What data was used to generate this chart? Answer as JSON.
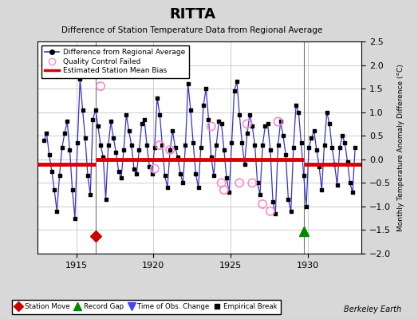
{
  "title": "RITTA",
  "subtitle": "Difference of Station Temperature Data from Regional Average",
  "ylabel": "Monthly Temperature Anomaly Difference (°C)",
  "xlim": [
    1912.5,
    1933.5
  ],
  "ylim": [
    -2.0,
    2.5
  ],
  "yticks": [
    -2.0,
    -1.5,
    -1.0,
    -0.5,
    0.0,
    0.5,
    1.0,
    1.5,
    2.0,
    2.5
  ],
  "xticks": [
    1915,
    1920,
    1925,
    1930
  ],
  "bg_color": "#d8d8d8",
  "plot_bg_color": "#ffffff",
  "line_color": "#3333cc",
  "bias_color": "#dd0000",
  "qc_color": "#ff88cc",
  "station_move_color": "#cc0000",
  "record_gap_color": "#008800",
  "time_obs_color": "#4444ff",
  "grid_color": "#bbbbbb",
  "data_x": [
    1912.917,
    1913.083,
    1913.25,
    1913.417,
    1913.583,
    1913.75,
    1913.917,
    1914.083,
    1914.25,
    1914.417,
    1914.583,
    1914.75,
    1914.917,
    1915.083,
    1915.25,
    1915.417,
    1915.583,
    1915.75,
    1915.917,
    1916.083,
    1916.25,
    1916.417,
    1916.583,
    1916.75,
    1916.917,
    1917.083,
    1917.25,
    1917.417,
    1917.583,
    1917.75,
    1917.917,
    1918.083,
    1918.25,
    1918.417,
    1918.583,
    1918.75,
    1918.917,
    1919.083,
    1919.25,
    1919.417,
    1919.583,
    1919.75,
    1919.917,
    1920.083,
    1920.25,
    1920.417,
    1920.583,
    1920.75,
    1920.917,
    1921.083,
    1921.25,
    1921.417,
    1921.583,
    1921.75,
    1921.917,
    1922.083,
    1922.25,
    1922.417,
    1922.583,
    1922.75,
    1922.917,
    1923.083,
    1923.25,
    1923.417,
    1923.583,
    1923.75,
    1923.917,
    1924.083,
    1924.25,
    1924.417,
    1924.583,
    1924.75,
    1924.917,
    1925.083,
    1925.25,
    1925.417,
    1925.583,
    1925.75,
    1925.917,
    1926.083,
    1926.25,
    1926.417,
    1926.583,
    1926.75,
    1926.917,
    1927.083,
    1927.25,
    1927.417,
    1927.583,
    1927.75,
    1927.917,
    1928.083,
    1928.25,
    1928.417,
    1928.583,
    1928.75,
    1928.917,
    1929.083,
    1929.25,
    1929.417,
    1929.583,
    1929.75,
    1929.917,
    1930.083,
    1930.25,
    1930.417,
    1930.583,
    1930.75,
    1930.917,
    1931.083,
    1931.25,
    1931.417,
    1931.583,
    1931.75,
    1931.917,
    1932.083,
    1932.25,
    1932.417,
    1932.583,
    1932.75,
    1932.917,
    1933.083
  ],
  "data_y": [
    0.4,
    0.55,
    0.1,
    -0.25,
    -0.65,
    -1.1,
    -0.35,
    0.25,
    0.55,
    0.8,
    0.2,
    -0.65,
    -1.25,
    0.35,
    1.7,
    1.05,
    0.45,
    -0.35,
    -0.75,
    0.85,
    1.05,
    0.7,
    0.3,
    0.05,
    -0.85,
    0.3,
    0.8,
    0.45,
    0.15,
    -0.25,
    -0.4,
    0.2,
    0.95,
    0.6,
    0.3,
    -0.2,
    -0.3,
    0.2,
    0.75,
    0.85,
    0.3,
    -0.15,
    -0.3,
    0.25,
    1.3,
    0.95,
    0.3,
    -0.35,
    -0.6,
    0.2,
    0.6,
    0.25,
    0.05,
    -0.3,
    -0.5,
    0.3,
    1.6,
    1.05,
    0.35,
    -0.3,
    -0.6,
    0.25,
    1.15,
    1.5,
    0.85,
    0.05,
    -0.35,
    0.3,
    0.8,
    0.75,
    0.2,
    -0.4,
    -0.7,
    0.35,
    1.45,
    1.65,
    0.95,
    0.35,
    -0.1,
    0.55,
    0.95,
    0.7,
    0.3,
    -0.5,
    -0.75,
    0.3,
    0.7,
    0.75,
    0.2,
    -0.9,
    -1.15,
    0.3,
    0.8,
    0.5,
    0.1,
    -0.85,
    -1.1,
    0.25,
    1.15,
    1.0,
    0.35,
    -0.35,
    -1.0,
    0.25,
    0.45,
    0.6,
    0.2,
    -0.15,
    -0.65,
    0.3,
    1.0,
    0.75,
    0.25,
    -0.1,
    -0.55,
    0.25,
    0.5,
    0.35,
    -0.05,
    -0.5,
    -0.7,
    0.25
  ],
  "bias_segments": [
    {
      "x_start": 1912.5,
      "x_end": 1916.25,
      "y": -0.1
    },
    {
      "x_start": 1916.25,
      "x_end": 1929.75,
      "y": 0.0
    },
    {
      "x_start": 1929.75,
      "x_end": 1933.5,
      "y": -0.1
    }
  ],
  "vlines": [
    1916.25,
    1929.75
  ],
  "station_move_x": 1916.25,
  "station_move_y": -1.62,
  "record_gap_x": 1929.75,
  "record_gap_y": -1.52,
  "qc_failed_x": [
    1916.583,
    1920.083,
    1920.417,
    1921.083,
    1923.75,
    1924.417,
    1924.583,
    1925.583,
    1926.083,
    1926.417,
    1927.083,
    1927.583,
    1928.083
  ],
  "qc_failed_y": [
    1.55,
    -0.2,
    0.3,
    0.2,
    0.7,
    -0.5,
    -0.65,
    -0.5,
    0.75,
    -0.5,
    -0.95,
    -1.1,
    0.8
  ]
}
